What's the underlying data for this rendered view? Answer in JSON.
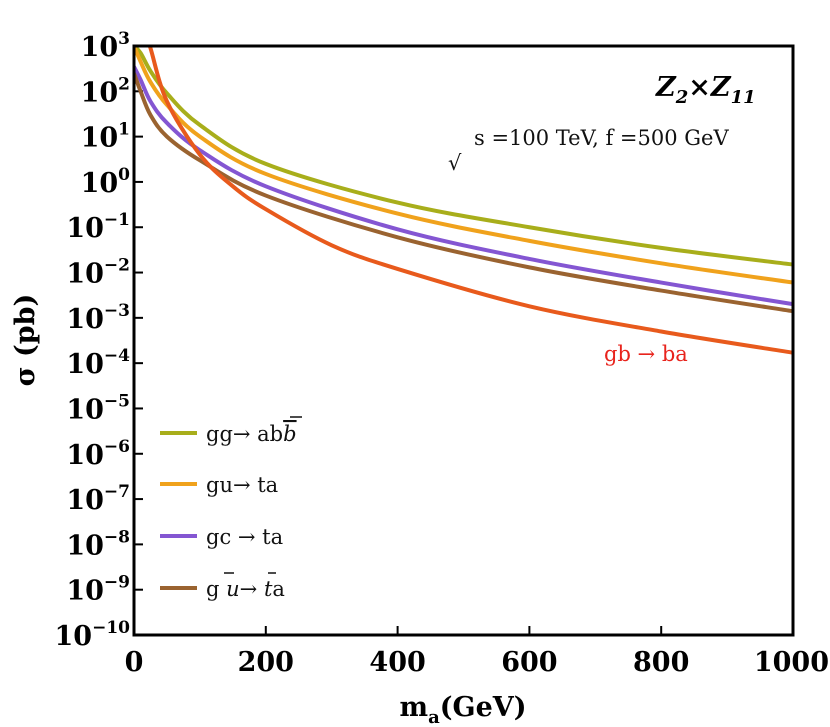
{
  "chart_data": {
    "type": "line",
    "title": "",
    "xlabel": "m",
    "xlabel_sub": "a",
    "xlabel_unit": "(GeV)",
    "ylabel": "σ (pb)",
    "xlim": [
      0,
      1000
    ],
    "ylim_log10": [
      -10,
      3
    ],
    "y_scale": "log",
    "x_ticks": [
      "0",
      "200",
      "400",
      "600",
      "800",
      "1000"
    ],
    "y_ticks": [
      {
        "base": "10",
        "exp": "3"
      },
      {
        "base": "10",
        "exp": "2"
      },
      {
        "base": "10",
        "exp": "1"
      },
      {
        "base": "10",
        "exp": "0"
      },
      {
        "base": "10",
        "exp": "−1"
      },
      {
        "base": "10",
        "exp": "−2"
      },
      {
        "base": "10",
        "exp": "−3"
      },
      {
        "base": "10",
        "exp": "−4"
      },
      {
        "base": "10",
        "exp": "−5"
      },
      {
        "base": "10",
        "exp": "−6"
      },
      {
        "base": "10",
        "exp": "−7"
      },
      {
        "base": "10",
        "exp": "−8"
      },
      {
        "base": "10",
        "exp": "−9"
      },
      {
        "base": "10",
        "exp": "−10"
      }
    ],
    "annotations": {
      "model_main": "Z",
      "model_sub1": "2",
      "model_times": "×",
      "model_main2": "Z",
      "model_sub2": "11",
      "sqrt_symbol": "√",
      "energy": "s =100 TeV, f =500 GeV",
      "curve_label": "gb → ba",
      "curve_label_color": "#e8231c"
    },
    "legend_position": "bottom-left",
    "series": [
      {
        "name": "gg→ ab b̄",
        "color": "#a8ae1b",
        "x": [
          0,
          10,
          25,
          50,
          100,
          200,
          400,
          600,
          800,
          1000
        ],
        "y": [
          1000,
          700,
          280,
          90,
          18,
          2.5,
          0.35,
          0.1,
          0.035,
          0.015
        ]
      },
      {
        "name": "gu→ ta",
        "color": "#f0a21c",
        "x": [
          0,
          10,
          25,
          50,
          100,
          200,
          400,
          600,
          800,
          1000
        ],
        "y": [
          1000,
          450,
          160,
          50,
          10,
          1.5,
          0.2,
          0.05,
          0.016,
          0.006
        ]
      },
      {
        "name": "gc → ta",
        "color": "#8456d2",
        "x": [
          0,
          10,
          25,
          50,
          100,
          200,
          400,
          600,
          800,
          1000
        ],
        "y": [
          350,
          180,
          60,
          20,
          5,
          0.8,
          0.09,
          0.02,
          0.006,
          0.002
        ]
      },
      {
        "name": "g ū→ t̄a",
        "color": "#9a6330",
        "x": [
          0,
          10,
          25,
          50,
          100,
          200,
          400,
          600,
          800,
          1000
        ],
        "y": [
          250,
          100,
          30,
          10,
          3,
          0.5,
          0.06,
          0.013,
          0.004,
          0.0014
        ]
      },
      {
        "name": "gb → ba",
        "color": "#e85a1c",
        "x": [
          0,
          10,
          25,
          50,
          100,
          150,
          200,
          300,
          400,
          600,
          800,
          1000
        ],
        "y": [
          20000,
          5000,
          900,
          60,
          4,
          0.8,
          0.25,
          0.04,
          0.012,
          0.0018,
          0.0005,
          0.00017
        ]
      }
    ],
    "legend": [
      {
        "pre": "gg→ ab",
        "over": "b",
        "post": "",
        "color": "#a8ae1b"
      },
      {
        "pre": "gu→ ta",
        "over": "",
        "post": "",
        "color": "#f0a21c"
      },
      {
        "pre": "gc → ta",
        "over": "",
        "post": "",
        "color": "#8456d2"
      },
      {
        "pre": "g ",
        "over": "u",
        "mid": "→ ",
        "over2": "t",
        "post": "a",
        "color": "#9a6330"
      }
    ]
  }
}
